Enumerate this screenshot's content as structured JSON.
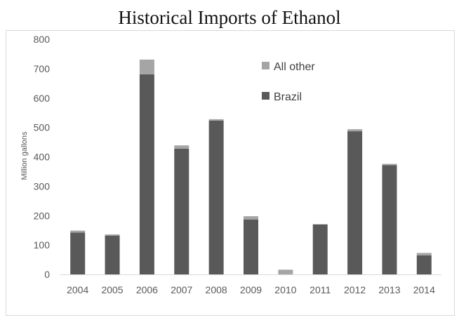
{
  "chart_data": {
    "type": "bar",
    "stacked": true,
    "title": "Historical Imports of Ethanol",
    "xlabel": "",
    "ylabel": "Million gallons",
    "ylim": [
      0,
      800
    ],
    "yticks": [
      0,
      100,
      200,
      300,
      400,
      500,
      600,
      700,
      800
    ],
    "categories": [
      "2004",
      "2005",
      "2006",
      "2007",
      "2008",
      "2009",
      "2010",
      "2011",
      "2012",
      "2013",
      "2014"
    ],
    "series": [
      {
        "name": "Brazil",
        "color": "#595959",
        "values": [
          142,
          132,
          681,
          428,
          523,
          187,
          0,
          170,
          487,
          372,
          65
        ]
      },
      {
        "name": "All other",
        "color": "#a5a5a5",
        "values": [
          7,
          4,
          50,
          11,
          5,
          11,
          16,
          1,
          7,
          4,
          8
        ]
      }
    ],
    "legend": {
      "position": "top-right",
      "order": [
        "All other",
        "Brazil"
      ]
    },
    "grid": false
  }
}
